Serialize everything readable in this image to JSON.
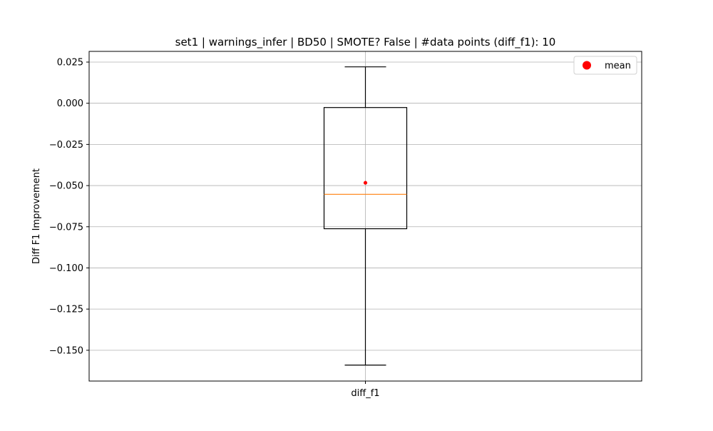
{
  "chart_data": {
    "type": "box",
    "title": "set1 | warnings_infer | BD50 | SMOTE? False | #data points (diff_f1): 10",
    "xlabel": "",
    "ylabel": "Diff F1 Improvement",
    "categories": [
      "diff_f1"
    ],
    "ylim": [
      -0.1687,
      0.0315
    ],
    "y_ticks": [
      {
        "value": 0.025,
        "label": "0.025"
      },
      {
        "value": 0.0,
        "label": "0.000"
      },
      {
        "value": -0.025,
        "label": "−0.025"
      },
      {
        "value": -0.05,
        "label": "−0.050"
      },
      {
        "value": -0.075,
        "label": "−0.075"
      },
      {
        "value": -0.1,
        "label": "−0.100"
      },
      {
        "value": -0.125,
        "label": "−0.125"
      },
      {
        "value": -0.15,
        "label": "−0.150"
      }
    ],
    "grid": true,
    "boxes": [
      {
        "category": "diff_f1",
        "whisker_low": -0.159,
        "q1": -0.0762,
        "median": -0.0553,
        "q3": -0.0026,
        "whisker_high": 0.0221,
        "mean": -0.0483
      }
    ],
    "legend": {
      "position": "upper right",
      "entries": [
        {
          "label": "mean",
          "color": "#ff0000",
          "marker": "circle"
        }
      ]
    },
    "colors": {
      "box": "#000000",
      "median": "#ff7f0e",
      "mean": "#ff0000",
      "grid": "#b0b0b0"
    }
  }
}
